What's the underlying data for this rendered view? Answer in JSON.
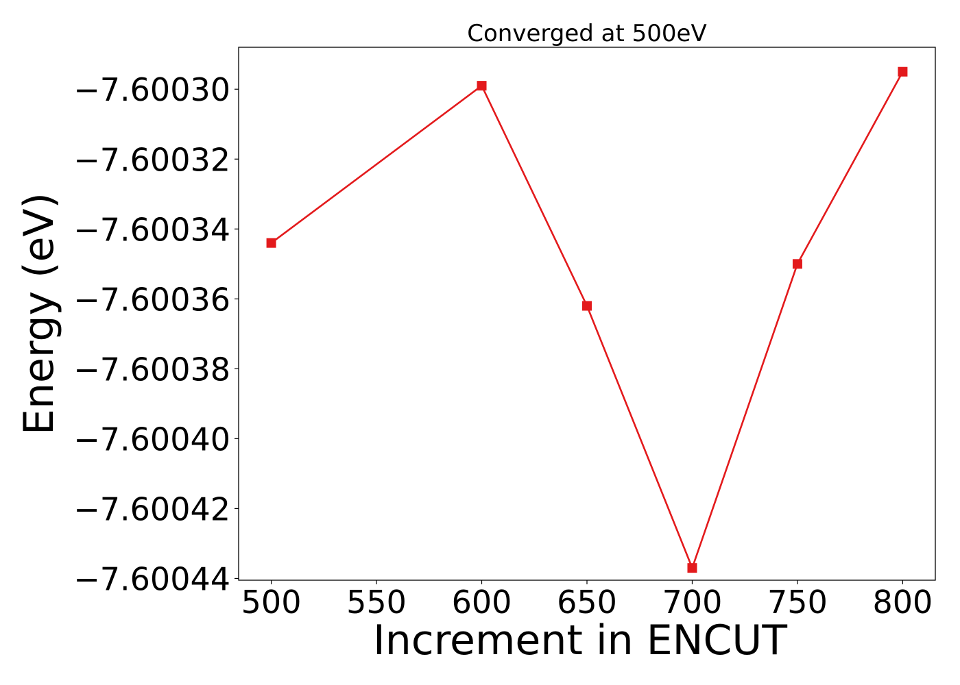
{
  "chart_data": {
    "type": "line",
    "title": "Converged at 500eV",
    "xlabel": "Increment in ENCUT",
    "ylabel": "Energy (eV)",
    "x": [
      500,
      600,
      650,
      700,
      750,
      800
    ],
    "series": [
      {
        "values": [
          -7.600344,
          -7.600299,
          -7.600362,
          -7.600437,
          -7.60035,
          -7.600295
        ],
        "color": "#e31a1c",
        "marker": "square"
      }
    ],
    "xlim": [
      484.5,
      815.5
    ],
    "ylim": [
      -7.6004405,
      -7.600288
    ],
    "xticks": [
      500,
      550,
      600,
      650,
      700,
      750,
      800
    ],
    "xtick_labels": [
      "500",
      "550",
      "600",
      "650",
      "700",
      "750",
      "800"
    ],
    "yticks": [
      -7.6003,
      -7.60032,
      -7.60034,
      -7.60036,
      -7.60038,
      -7.6004,
      -7.60042,
      -7.60044
    ],
    "ytick_labels": [
      "−7.60030",
      "−7.60032",
      "−7.60034",
      "−7.60036",
      "−7.60038",
      "−7.60040",
      "−7.60042",
      "−7.60044"
    ],
    "grid": false,
    "legend": false
  }
}
